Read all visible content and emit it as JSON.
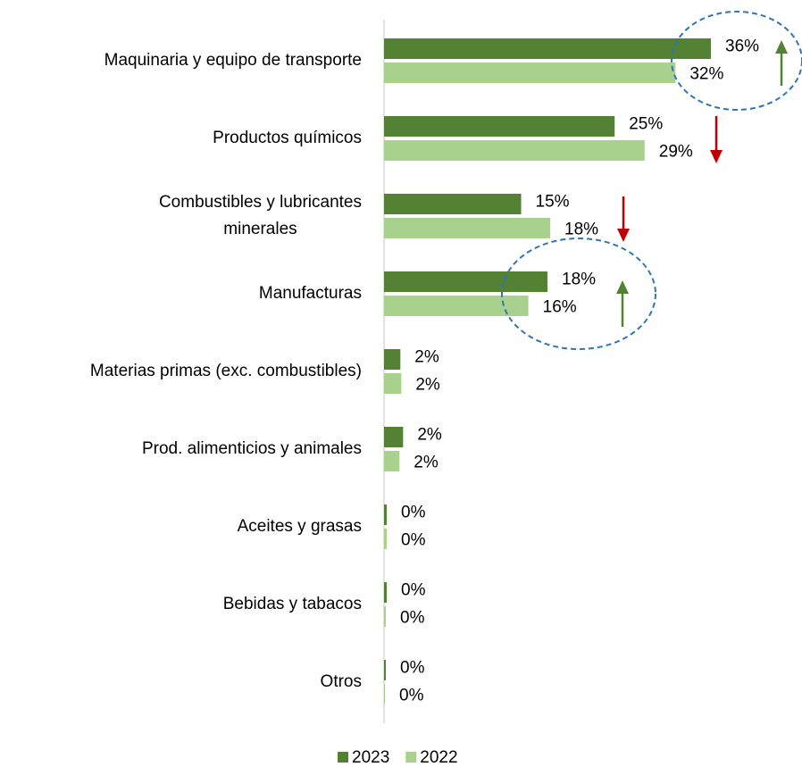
{
  "chart_data": {
    "type": "bar",
    "orientation": "horizontal",
    "categories": [
      "Maquinaria y equipo de transporte",
      "Productos químicos",
      "Combustibles y lubricantes\nminerales",
      "Manufacturas",
      "Materias primas (exc. combustibles)",
      "Prod. alimenticios y animales",
      "Aceites y grasas",
      "Bebidas y tabacos",
      "Otros"
    ],
    "series": [
      {
        "name": "2023",
        "color": "#548235",
        "values": [
          36.0,
          25.4,
          15.1,
          18.0,
          1.8,
          2.1,
          0.3,
          0.3,
          0.2
        ],
        "value_labels": [
          "36%",
          "25%",
          "15%",
          "18%",
          "2%",
          "2%",
          "0%",
          "0%",
          "0%"
        ]
      },
      {
        "name": "2022",
        "color": "#a9d18e",
        "values": [
          32.1,
          28.7,
          18.3,
          15.9,
          1.9,
          1.7,
          0.3,
          0.2,
          0.1
        ],
        "value_labels": [
          "32%",
          "29%",
          "18%",
          "16%",
          "2%",
          "2%",
          "0%",
          "0%",
          "0%"
        ]
      }
    ],
    "legend": "bottom"
  }
}
